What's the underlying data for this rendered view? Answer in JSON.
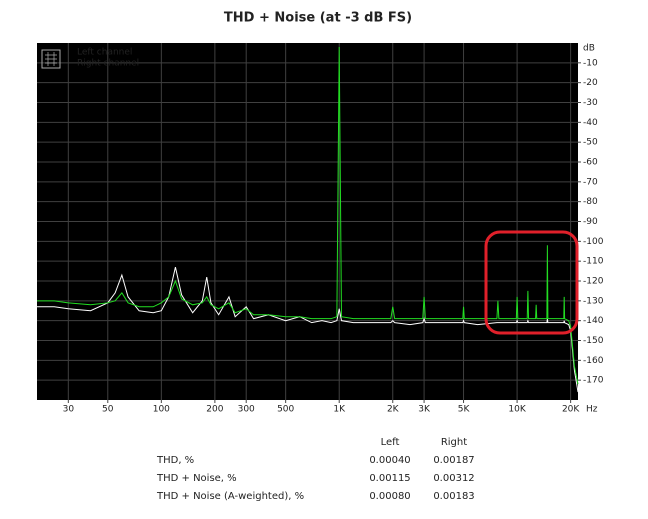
{
  "chart_data": {
    "type": "line",
    "title": "THD + Noise (at -3 dB FS)",
    "x_label": "Hz",
    "y_label": "dB",
    "xscale": "log",
    "grid": true,
    "legend": "upper left",
    "background": "#000000",
    "grid_color": "#404040",
    "xlim": [
      20,
      22000
    ],
    "ylim": [
      -180,
      0
    ],
    "xticks": [
      30,
      50,
      100,
      200,
      300,
      500,
      {
        "value": 1000,
        "label": "1K"
      },
      {
        "value": 2000,
        "label": "2K"
      },
      {
        "value": 3000,
        "label": "3K"
      },
      {
        "value": 5000,
        "label": "5K"
      },
      {
        "value": 10000,
        "label": "10K"
      },
      {
        "value": 20000,
        "label": "20K"
      }
    ],
    "yticks": [
      -10,
      -20,
      -30,
      -40,
      -50,
      -60,
      -70,
      -80,
      -90,
      -100,
      -110,
      -120,
      -130,
      -140,
      -150,
      -160,
      -170
    ],
    "x": [
      20,
      25,
      30,
      40,
      50,
      55,
      60,
      65,
      75,
      90,
      100,
      110,
      120,
      130,
      150,
      170,
      180,
      190,
      210,
      240,
      260,
      300,
      330,
      400,
      500,
      600,
      700,
      800,
      900,
      970,
      1000,
      1030,
      1200,
      1500,
      1950,
      2000,
      2050,
      2500,
      2950,
      3000,
      3050,
      4000,
      4950,
      5000,
      5050,
      6000,
      7700,
      7800,
      7900,
      9000,
      9900,
      10000,
      10100,
      11400,
      11500,
      11600,
      12700,
      12800,
      12900,
      14000,
      14700,
      14800,
      14900,
      17000,
      18300,
      18400,
      18500,
      19500,
      20000,
      20500,
      21000,
      22000
    ],
    "series": [
      {
        "name": "Left channel",
        "color": "#ffffff",
        "values": [
          -133,
          -133,
          -134,
          -135,
          -131,
          -126,
          -117,
          -128,
          -135,
          -136,
          -135,
          -128,
          -113,
          -127,
          -136,
          -130,
          -118,
          -131,
          -137,
          -128,
          -138,
          -133,
          -139,
          -137,
          -140,
          -138,
          -141,
          -140,
          -141,
          -140,
          -134,
          -140,
          -141,
          -141,
          -141,
          -140,
          -141,
          -142,
          -141,
          -139,
          -141,
          -141,
          -141,
          -140,
          -141,
          -142,
          -141,
          -141,
          -141,
          -141,
          -141,
          -140,
          -141,
          -141,
          -140,
          -141,
          -141,
          -141,
          -141,
          -141,
          -141,
          -139,
          -141,
          -141,
          -141,
          -140,
          -141,
          -142,
          -145,
          -155,
          -165,
          -176
        ]
      },
      {
        "name": "Right channel",
        "color": "#22dd22",
        "values": [
          -130,
          -130,
          -131,
          -132,
          -131,
          -130,
          -126,
          -131,
          -133,
          -133,
          -131,
          -128,
          -120,
          -129,
          -132,
          -131,
          -128,
          -132,
          -134,
          -131,
          -136,
          -134,
          -137,
          -137,
          -138,
          -138,
          -139,
          -139,
          -139,
          -138,
          -2,
          -138,
          -139,
          -139,
          -139,
          -133,
          -139,
          -139,
          -139,
          -128,
          -139,
          -139,
          -139,
          -133,
          -139,
          -139,
          -139,
          -130,
          -139,
          -139,
          -139,
          -128,
          -139,
          -139,
          -125,
          -139,
          -139,
          -132,
          -139,
          -139,
          -139,
          -102,
          -139,
          -139,
          -139,
          -128,
          -139,
          -140,
          -143,
          -153,
          -163,
          -172
        ]
      }
    ]
  },
  "table": {
    "columns": [
      "Left",
      "Right"
    ],
    "rows": [
      [
        "THD, %",
        "0.00040",
        "0.00187"
      ],
      [
        "THD + Noise, %",
        "0.00115",
        "0.00312"
      ],
      [
        "THD + Noise (A-weighted), %",
        "0.00080",
        "0.00183"
      ]
    ]
  }
}
